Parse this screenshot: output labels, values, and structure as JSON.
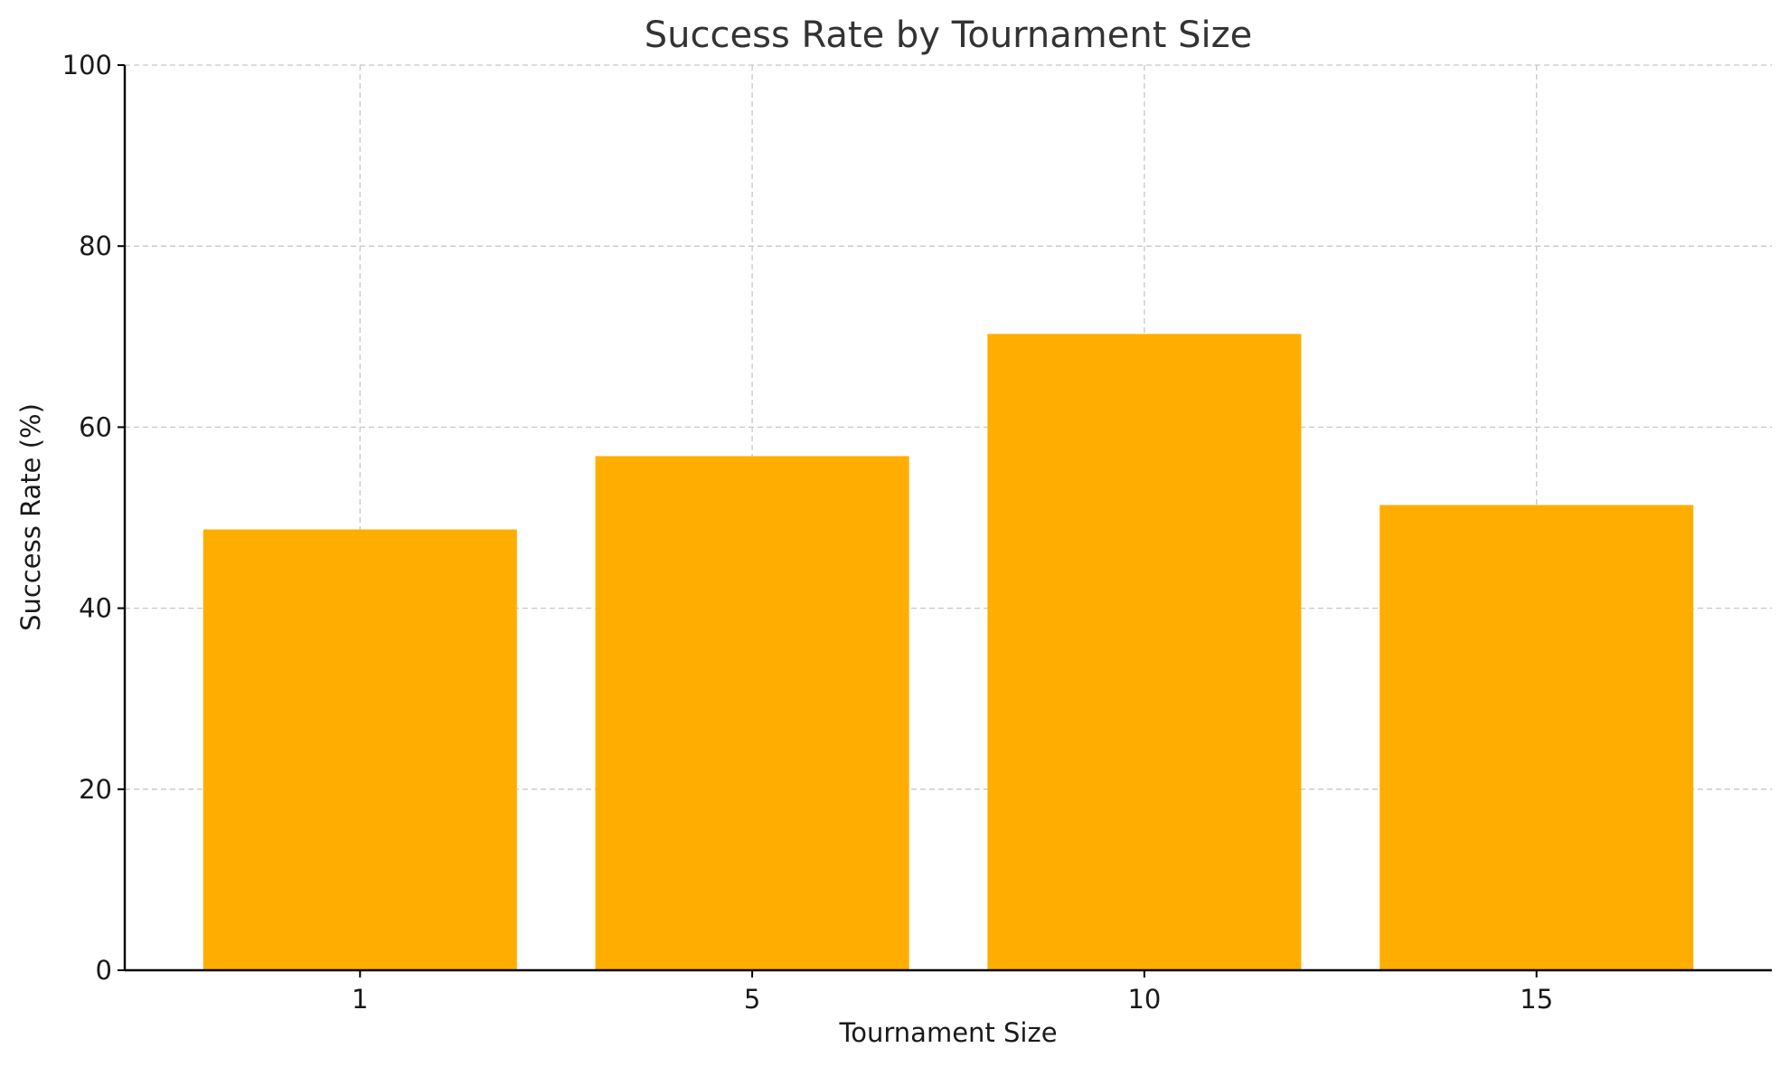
{
  "chart_data": {
    "type": "bar",
    "title": "Success Rate by Tournament Size",
    "xlabel": "Tournament Size",
    "ylabel": "Success Rate (%)",
    "categories": [
      "1",
      "5",
      "10",
      "15"
    ],
    "values": [
      48.7,
      56.8,
      70.3,
      51.4
    ],
    "ylim": [
      0,
      100
    ],
    "yticks": [
      0,
      20,
      40,
      60,
      80,
      100
    ],
    "grid": true,
    "bar_color": "#ffae00"
  }
}
